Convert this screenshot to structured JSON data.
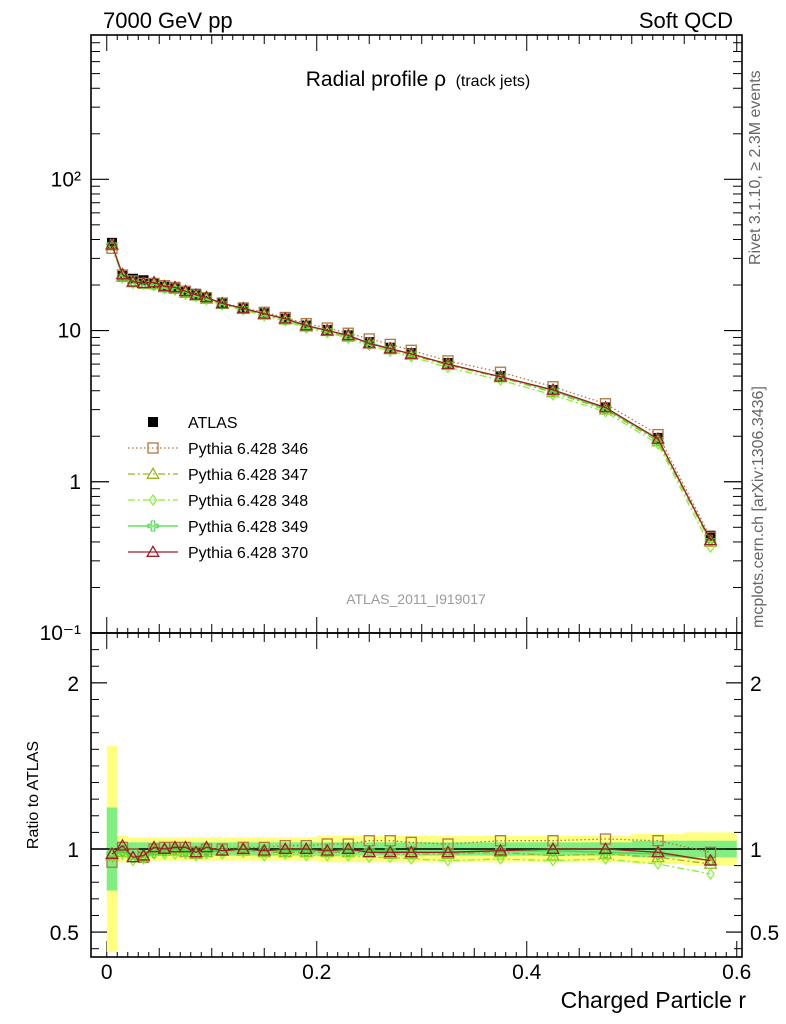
{
  "header": {
    "left": "7000 GeV pp",
    "right": "Soft QCD"
  },
  "side_label_top": "Rivet 3.1.10, ≥ 2.3M events",
  "side_label_bottom": "mcplots.cern.ch [arXiv:1306.3436]",
  "watermark": "ATLAS_2011_I919017",
  "chart_data": [
    {
      "type": "line",
      "title": "Radial profile ρ",
      "title_suffix": "(track jets)",
      "xlabel": "",
      "ylabel": "",
      "yscale": "log",
      "xlim": [
        -0.015,
        0.605
      ],
      "ylim": [
        0.1,
        900
      ],
      "ytick_labels": [
        "10⁻¹",
        "1",
        "10",
        "10²"
      ],
      "legend_position": "middle-left",
      "x": [
        0.005,
        0.015,
        0.025,
        0.035,
        0.045,
        0.055,
        0.065,
        0.075,
        0.085,
        0.095,
        0.11,
        0.13,
        0.15,
        0.17,
        0.19,
        0.21,
        0.23,
        0.25,
        0.27,
        0.29,
        0.325,
        0.375,
        0.425,
        0.475,
        0.525,
        0.575
      ],
      "series": [
        {
          "name": "ATLAS",
          "color": "#000000",
          "marker": "filled-square",
          "line": "none",
          "values": [
            38,
            23,
            22,
            21.5,
            20.5,
            19.5,
            19,
            18,
            17.5,
            16.5,
            15.2,
            14,
            13,
            12,
            10.8,
            10.1,
            9.3,
            8.4,
            7.7,
            7.1,
            6.1,
            5.0,
            4.05,
            3.1,
            1.95,
            0.44
          ]
        },
        {
          "name": "Pythia 6.428 346",
          "color": "#b07840",
          "marker": "open-square",
          "line": "dotted",
          "values": [
            35,
            23.3,
            21.3,
            20.5,
            20.5,
            19.8,
            19.3,
            18.2,
            17.2,
            16.5,
            15.2,
            14.1,
            13.2,
            12.2,
            11.1,
            10.4,
            9.6,
            8.8,
            8.1,
            7.4,
            6.3,
            5.3,
            4.25,
            3.28,
            2.05,
            0.43
          ]
        },
        {
          "name": "Pythia 6.428 347",
          "color": "#9ab428",
          "marker": "open-triangle",
          "line": "dashdot",
          "values": [
            36.5,
            22.6,
            20.8,
            20.5,
            20.2,
            19.3,
            18.8,
            17.7,
            17,
            16.2,
            15,
            13.9,
            12.7,
            11.8,
            10.6,
            9.9,
            9.1,
            8.2,
            7.5,
            6.9,
            5.9,
            4.9,
            3.9,
            3.0,
            1.85,
            0.4
          ]
        },
        {
          "name": "Pythia 6.428 348",
          "color": "#88f030",
          "marker": "open-diamond",
          "line": "dashdot",
          "values": [
            36.5,
            22.3,
            20.5,
            20.3,
            19.8,
            19,
            18.5,
            17.4,
            16.8,
            16,
            14.8,
            13.7,
            12.5,
            11.6,
            10.4,
            9.7,
            8.9,
            8.0,
            7.3,
            6.7,
            5.7,
            4.7,
            3.75,
            2.9,
            1.78,
            0.37
          ]
        },
        {
          "name": "Pythia 6.428 349",
          "color": "#44dc44",
          "marker": "open-cross",
          "line": "solid",
          "values": [
            37,
            22.8,
            21,
            20.6,
            20.2,
            19.4,
            19,
            17.9,
            17.2,
            16.4,
            15.1,
            14,
            12.9,
            11.9,
            10.7,
            10.0,
            9.2,
            8.3,
            7.6,
            7.0,
            6.0,
            4.95,
            4.0,
            3.05,
            1.9,
            0.41
          ]
        },
        {
          "name": "Pythia 6.428 370",
          "color": "#a01e28",
          "marker": "open-triangle",
          "line": "solid",
          "values": [
            37,
            23.5,
            21,
            20.6,
            20.8,
            19.6,
            19.3,
            18.2,
            17.2,
            16.6,
            15.1,
            14.0,
            12.9,
            12.0,
            10.8,
            10.0,
            9.3,
            8.2,
            7.6,
            7.0,
            6.0,
            4.95,
            4.05,
            3.1,
            1.92,
            0.41
          ]
        }
      ]
    },
    {
      "type": "line",
      "title": "",
      "xlabel": "Charged Particle r",
      "ylabel": "Ratio to ATLAS",
      "xlim": [
        -0.015,
        0.605
      ],
      "ylim": [
        0.35,
        2.3
      ],
      "xtick_labels": [
        "0",
        "0.2",
        "0.4",
        "0.6"
      ],
      "ytick_labels": [
        "0.5",
        "1",
        "2"
      ],
      "band_stat": [
        0.25,
        0.04,
        0.04,
        0.04,
        0.04,
        0.04,
        0.04,
        0.04,
        0.04,
        0.04,
        0.04,
        0.04,
        0.04,
        0.04,
        0.04,
        0.04,
        0.04,
        0.04,
        0.04,
        0.04,
        0.04,
        0.04,
        0.04,
        0.04,
        0.05,
        0.05
      ],
      "band_total": [
        0.62,
        0.08,
        0.07,
        0.07,
        0.07,
        0.07,
        0.07,
        0.07,
        0.07,
        0.07,
        0.07,
        0.07,
        0.07,
        0.07,
        0.07,
        0.08,
        0.08,
        0.08,
        0.08,
        0.08,
        0.08,
        0.08,
        0.08,
        0.08,
        0.09,
        0.1
      ],
      "series": [
        {
          "name": "Pythia 6.428 346",
          "values": [
            0.92,
            1.01,
            0.97,
            0.95,
            1.0,
            1.01,
            1.01,
            1.01,
            0.98,
            1.0,
            1.0,
            1.01,
            1.01,
            1.02,
            1.02,
            1.03,
            1.03,
            1.05,
            1.05,
            1.04,
            1.03,
            1.05,
            1.05,
            1.06,
            1.05,
            0.98
          ]
        },
        {
          "name": "Pythia 6.428 347",
          "values": [
            0.96,
            0.98,
            0.95,
            0.95,
            0.99,
            0.99,
            0.99,
            0.98,
            0.97,
            0.98,
            0.99,
            0.99,
            0.98,
            0.98,
            0.98,
            0.98,
            0.98,
            0.98,
            0.97,
            0.97,
            0.97,
            0.98,
            0.96,
            0.97,
            0.95,
            0.91
          ]
        },
        {
          "name": "Pythia 6.428 348",
          "values": [
            0.96,
            0.97,
            0.93,
            0.94,
            0.97,
            0.97,
            0.97,
            0.97,
            0.96,
            0.97,
            0.97,
            0.98,
            0.96,
            0.97,
            0.96,
            0.96,
            0.96,
            0.95,
            0.95,
            0.94,
            0.93,
            0.94,
            0.93,
            0.94,
            0.91,
            0.85
          ]
        },
        {
          "name": "Pythia 6.428 349",
          "values": [
            0.97,
            0.99,
            0.95,
            0.96,
            0.98,
            0.99,
            1.0,
            0.99,
            0.98,
            0.99,
            0.99,
            1.0,
            0.99,
            0.99,
            0.99,
            0.99,
            0.99,
            0.99,
            0.99,
            0.98,
            0.98,
            0.99,
            0.99,
            0.98,
            0.97,
            0.93
          ]
        },
        {
          "name": "Pythia 6.428 370",
          "values": [
            0.97,
            1.02,
            0.95,
            0.96,
            1.01,
            1.0,
            1.01,
            1.01,
            0.98,
            1.01,
            0.99,
            1.0,
            0.99,
            1.0,
            1.0,
            0.99,
            1.0,
            0.98,
            0.98,
            0.98,
            0.98,
            0.99,
            1.0,
            1.0,
            0.98,
            0.93
          ]
        }
      ]
    }
  ]
}
